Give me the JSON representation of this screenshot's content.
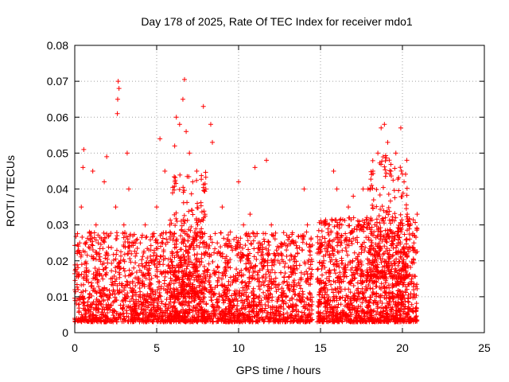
{
  "chart_data": {
    "type": "scatter",
    "title": "Day 178 of 2025, Rate Of TEC Index for receiver mdo1",
    "xlabel": "GPS time / hours",
    "ylabel": "ROTI / TECUs",
    "xlim": [
      0,
      25
    ],
    "ylim": [
      0,
      0.08
    ],
    "x_ticks": [
      0,
      5,
      10,
      15,
      20,
      25
    ],
    "x_tick_labels": [
      "0",
      "5",
      "10",
      "15",
      "20",
      "25"
    ],
    "y_ticks": [
      0,
      0.01,
      0.02,
      0.03,
      0.04,
      0.05,
      0.06,
      0.07,
      0.08
    ],
    "y_tick_labels": [
      "0",
      "0.01",
      "0.02",
      "0.03",
      "0.04",
      "0.05",
      "0.06",
      "0.07",
      "0.08"
    ],
    "grid": true,
    "marker": "plus",
    "color": "#ff0000",
    "points": [
      [
        0.1,
        0.008
      ],
      [
        0.2,
        0.012
      ],
      [
        0.3,
        0.025
      ],
      [
        0.4,
        0.035
      ],
      [
        0.5,
        0.046
      ],
      [
        0.55,
        0.051
      ],
      [
        0.7,
        0.018
      ],
      [
        0.9,
        0.028
      ],
      [
        1.1,
        0.045
      ],
      [
        1.3,
        0.03
      ],
      [
        1.5,
        0.022
      ],
      [
        1.8,
        0.042
      ],
      [
        1.95,
        0.049
      ],
      [
        2.2,
        0.015
      ],
      [
        2.5,
        0.035
      ],
      [
        2.6,
        0.061
      ],
      [
        2.62,
        0.065
      ],
      [
        2.65,
        0.07
      ],
      [
        2.7,
        0.068
      ],
      [
        2.8,
        0.02
      ],
      [
        3.0,
        0.03
      ],
      [
        3.2,
        0.05
      ],
      [
        3.3,
        0.04
      ],
      [
        3.6,
        0.018
      ],
      [
        4.0,
        0.025
      ],
      [
        4.3,
        0.03
      ],
      [
        4.7,
        0.02
      ],
      [
        5.0,
        0.035
      ],
      [
        5.2,
        0.054
      ],
      [
        5.5,
        0.045
      ],
      [
        5.8,
        0.03
      ],
      [
        6.1,
        0.052
      ],
      [
        6.2,
        0.06
      ],
      [
        6.4,
        0.058
      ],
      [
        6.6,
        0.065
      ],
      [
        6.7,
        0.0705
      ],
      [
        6.8,
        0.056
      ],
      [
        7.0,
        0.05
      ],
      [
        7.2,
        0.042
      ],
      [
        7.5,
        0.03
      ],
      [
        7.85,
        0.063
      ],
      [
        8.0,
        0.04
      ],
      [
        8.3,
        0.058
      ],
      [
        8.4,
        0.053
      ],
      [
        8.7,
        0.025
      ],
      [
        9.0,
        0.035
      ],
      [
        9.5,
        0.028
      ],
      [
        10.0,
        0.042
      ],
      [
        10.3,
        0.03
      ],
      [
        10.7,
        0.033
      ],
      [
        11.0,
        0.046
      ],
      [
        11.3,
        0.025
      ],
      [
        11.7,
        0.048
      ],
      [
        12.0,
        0.03
      ],
      [
        12.4,
        0.02
      ],
      [
        12.8,
        0.025
      ],
      [
        13.2,
        0.018
      ],
      [
        13.6,
        0.022
      ],
      [
        14.0,
        0.04
      ],
      [
        14.2,
        0.03
      ],
      [
        14.4,
        0.015
      ],
      [
        15.0,
        0.012
      ],
      [
        15.2,
        0.02
      ],
      [
        15.5,
        0.03
      ],
      [
        15.8,
        0.045
      ],
      [
        16.0,
        0.04
      ],
      [
        16.3,
        0.03
      ],
      [
        16.7,
        0.035
      ],
      [
        17.0,
        0.038
      ],
      [
        17.3,
        0.03
      ],
      [
        17.6,
        0.04
      ],
      [
        17.9,
        0.04
      ],
      [
        18.2,
        0.045
      ],
      [
        18.5,
        0.05
      ],
      [
        18.7,
        0.057
      ],
      [
        18.9,
        0.058
      ],
      [
        19.1,
        0.053
      ],
      [
        19.3,
        0.045
      ],
      [
        19.6,
        0.05
      ],
      [
        19.9,
        0.057
      ],
      [
        20.1,
        0.042
      ],
      [
        20.4,
        0.03
      ],
      [
        20.7,
        0.025
      ],
      [
        20.9,
        0.033
      ]
    ],
    "dense_ranges": [
      {
        "x": [
          0.0,
          14.5
        ],
        "y": [
          0.003,
          0.028
        ],
        "count": 2400
      },
      {
        "x": [
          14.8,
          20.9
        ],
        "y": [
          0.003,
          0.032
        ],
        "count": 1300
      },
      {
        "x": [
          5.8,
          8.0
        ],
        "y": [
          0.01,
          0.045
        ],
        "count": 250
      },
      {
        "x": [
          17.8,
          20.3
        ],
        "y": [
          0.015,
          0.05
        ],
        "count": 250
      }
    ]
  }
}
